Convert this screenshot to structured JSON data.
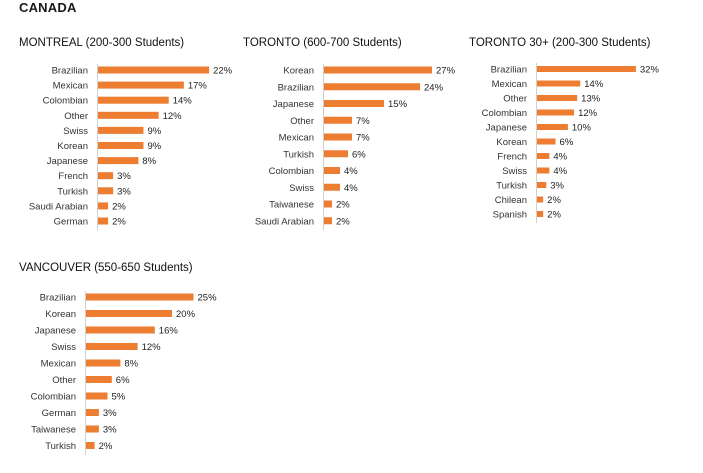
{
  "page": {
    "title": "CANADA"
  },
  "panels": [
    {
      "title": "MONTREAL (200-300 Students)"
    },
    {
      "title": "TORONTO (600-700 Students)"
    },
    {
      "title": "TORONTO 30+ (200-300 Students)"
    },
    {
      "title": "VANCOUVER (550-650 Students)"
    }
  ],
  "style": {
    "bar_color": "#ED7D31",
    "axis_color": "#d0d0d0"
  },
  "chart_data": [
    {
      "type": "bar",
      "orientation": "horizontal",
      "title": "MONTREAL (200-300 Students)",
      "categories": [
        "Brazilian",
        "Mexican",
        "Colombian",
        "Other",
        "Swiss",
        "Korean",
        "Japanese",
        "French",
        "Turkish",
        "Saudi Arabian",
        "German"
      ],
      "values": [
        22,
        17,
        14,
        12,
        9,
        9,
        8,
        3,
        3,
        2,
        2
      ],
      "value_labels": [
        "22%",
        "17%",
        "14%",
        "12%",
        "9%",
        "9%",
        "8%",
        "3%",
        "3%",
        "2%",
        "2%"
      ],
      "unit": "%",
      "xlim": [
        0,
        30
      ],
      "grid": false,
      "legend": "none"
    },
    {
      "type": "bar",
      "orientation": "horizontal",
      "title": "TORONTO (600-700 Students)",
      "categories": [
        "Korean",
        "Brazilian",
        "Japanese",
        "Other",
        "Mexican",
        "Turkish",
        "Colombian",
        "Swiss",
        "Taiwanese",
        "Saudi Arabian"
      ],
      "values": [
        27,
        24,
        15,
        7,
        7,
        6,
        4,
        4,
        2,
        2
      ],
      "value_labels": [
        "27%",
        "24%",
        "15%",
        "7%",
        "7%",
        "6%",
        "4%",
        "4%",
        "2%",
        "2%"
      ],
      "unit": "%",
      "xlim": [
        0,
        30
      ],
      "grid": false,
      "legend": "none"
    },
    {
      "type": "bar",
      "orientation": "horizontal",
      "title": "TORONTO 30+ (200-300 Students)",
      "categories": [
        "Brazilian",
        "Mexican",
        "Other",
        "Colombian",
        "Japanese",
        "Korean",
        "French",
        "Swiss",
        "Turkish",
        "Chilean",
        "Spanish"
      ],
      "values": [
        32,
        14,
        13,
        12,
        10,
        6,
        4,
        4,
        3,
        2,
        2
      ],
      "value_labels": [
        "32%",
        "14%",
        "13%",
        "12%",
        "10%",
        "6%",
        "4%",
        "4%",
        "3%",
        "2%",
        "2%"
      ],
      "unit": "%",
      "xlim": [
        0,
        36
      ],
      "grid": false,
      "legend": "none"
    },
    {
      "type": "bar",
      "orientation": "horizontal",
      "title": "VANCOUVER (550-650 Students)",
      "categories": [
        "Brazilian",
        "Korean",
        "Japanese",
        "Swiss",
        "Mexican",
        "Other",
        "Colombian",
        "German",
        "Taiwanese",
        "Turkish"
      ],
      "values": [
        25,
        20,
        16,
        12,
        8,
        6,
        5,
        3,
        3,
        2
      ],
      "value_labels": [
        "25%",
        "20%",
        "16%",
        "12%",
        "8%",
        "6%",
        "5%",
        "3%",
        "3%",
        "2%"
      ],
      "unit": "%",
      "xlim": [
        0,
        30
      ],
      "grid": false,
      "legend": "none"
    }
  ]
}
